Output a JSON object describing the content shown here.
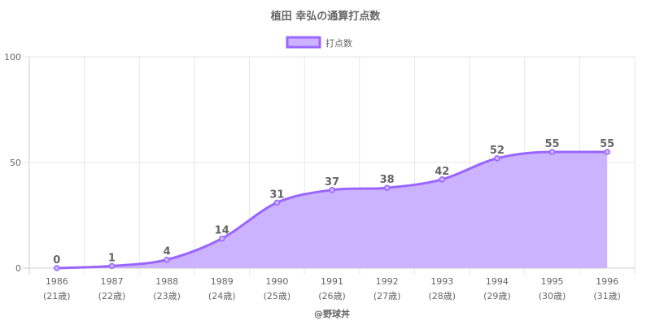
{
  "chart_data": {
    "type": "area",
    "title": "植田 幸弘の通算打点数",
    "categories": [
      "1986",
      "1987",
      "1988",
      "1989",
      "1990",
      "1991",
      "1992",
      "1993",
      "1994",
      "1995",
      "1996"
    ],
    "category_sublabels": [
      "(21歳)",
      "(22歳)",
      "(23歳)",
      "(24歳)",
      "(25歳)",
      "(26歳)",
      "(27歳)",
      "(28歳)",
      "(29歳)",
      "(30歳)",
      "(31歳)"
    ],
    "series": [
      {
        "name": "打点数",
        "values": [
          0,
          1,
          4,
          14,
          31,
          37,
          38,
          42,
          52,
          55,
          55
        ]
      }
    ],
    "ylim": [
      0,
      100
    ],
    "yticks": [
      0,
      50,
      100
    ],
    "grid": true,
    "legend": "top",
    "colors": {
      "line": "#9966ff",
      "fill": "#ccb3ff"
    },
    "footer": "@野球丼"
  }
}
